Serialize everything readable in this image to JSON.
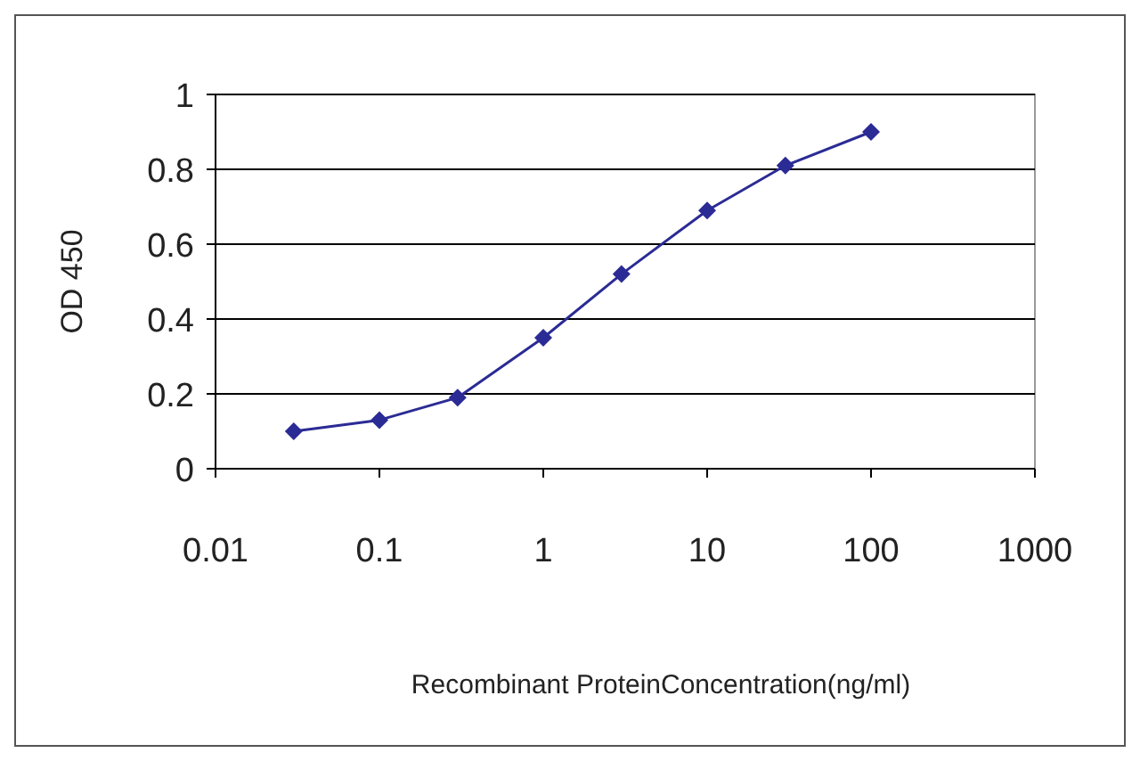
{
  "chart_data": {
    "type": "line",
    "xlabel": "Recombinant ProteinConcentration(ng/ml)",
    "ylabel": "OD 450",
    "x": [
      0.03,
      0.1,
      0.3,
      1,
      3,
      10,
      30,
      100
    ],
    "series": [
      {
        "color": "#2b2b95",
        "values": [
          0.1,
          0.13,
          0.19,
          0.35,
          0.52,
          0.69,
          0.81,
          0.9
        ]
      }
    ],
    "log": "x",
    "xlim": [
      0.01,
      1000
    ],
    "xticks": [
      0.01,
      0.1,
      1,
      10,
      100,
      1000
    ],
    "ylim": [
      0,
      1
    ],
    "yticks": [
      0,
      0.2,
      0.4,
      0.6,
      0.8,
      1
    ],
    "grid": "y",
    "marker": "diamond",
    "line_style": "solid"
  }
}
